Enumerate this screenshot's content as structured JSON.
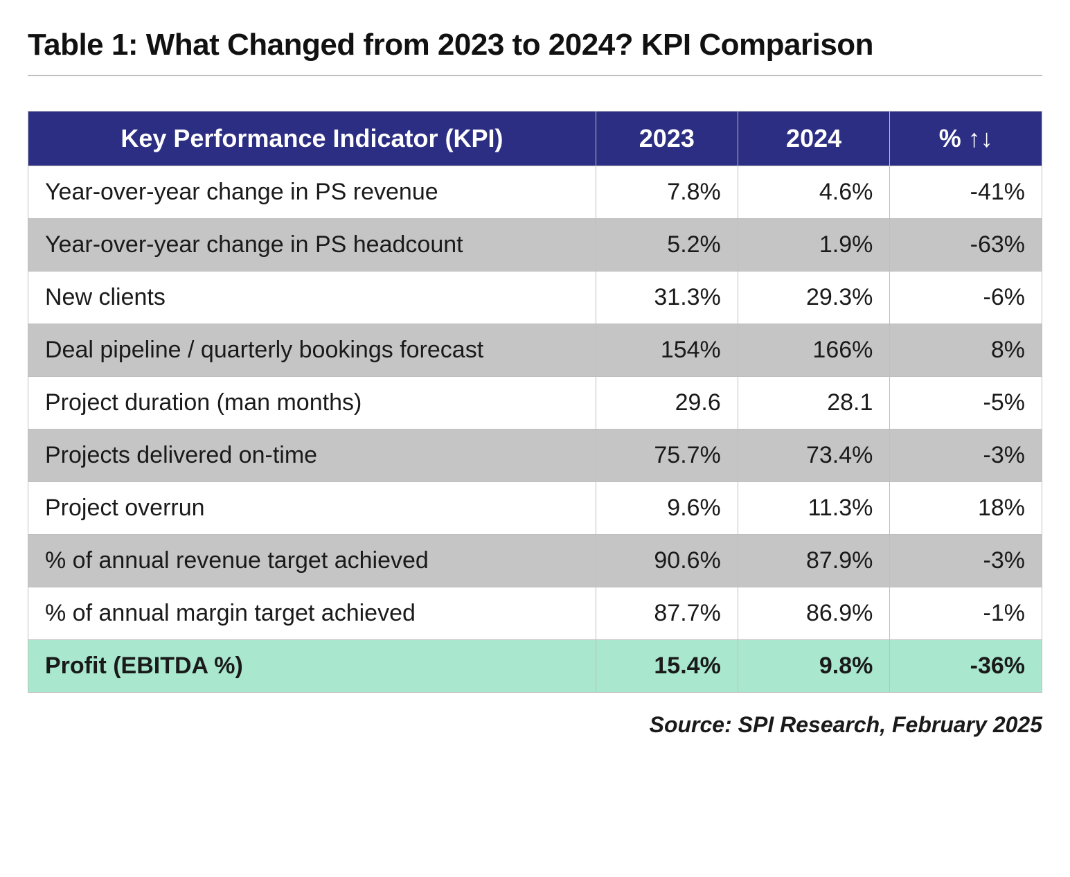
{
  "title": "Table 1:  What Changed from 2023 to 2024? KPI Comparison",
  "source_line": "Source: SPI Research, February 2025",
  "table": {
    "type": "table",
    "header_bg": "#2c2e83",
    "header_text_color": "#ffffff",
    "row_even_bg": "#ffffff",
    "row_odd_bg": "#c5c5c5",
    "highlight_bg": "#a9e8cf",
    "border_color": "#bfbfbf",
    "title_fontsize_pt": 33,
    "header_fontsize_pt": 27,
    "body_fontsize_pt": 26,
    "columns": [
      {
        "key": "kpi",
        "label": "Key Performance Indicator (KPI)",
        "align": "left",
        "width_pct": 56
      },
      {
        "key": "y2023",
        "label": "2023",
        "align": "right",
        "width_pct": 14
      },
      {
        "key": "y2024",
        "label": "2024",
        "align": "right",
        "width_pct": 15
      },
      {
        "key": "change",
        "label": "% ↑↓",
        "align": "right",
        "width_pct": 15
      }
    ],
    "rows": [
      {
        "kpi": "Year-over-year change in PS revenue",
        "y2023": "7.8%",
        "y2024": "4.6%",
        "change": "-41%",
        "highlight": false
      },
      {
        "kpi": "Year-over-year change in PS headcount",
        "y2023": "5.2%",
        "y2024": "1.9%",
        "change": "-63%",
        "highlight": false
      },
      {
        "kpi": "New clients",
        "y2023": "31.3%",
        "y2024": "29.3%",
        "change": "-6%",
        "highlight": false
      },
      {
        "kpi": "Deal pipeline / quarterly bookings forecast",
        "y2023": "154%",
        "y2024": "166%",
        "change": "8%",
        "highlight": false
      },
      {
        "kpi": "Project duration (man months)",
        "y2023": "29.6",
        "y2024": "28.1",
        "change": "-5%",
        "highlight": false
      },
      {
        "kpi": "Projects delivered on-time",
        "y2023": "75.7%",
        "y2024": "73.4%",
        "change": "-3%",
        "highlight": false
      },
      {
        "kpi": "Project overrun",
        "y2023": "9.6%",
        "y2024": "11.3%",
        "change": "18%",
        "highlight": false
      },
      {
        "kpi": "% of annual revenue target achieved",
        "y2023": "90.6%",
        "y2024": "87.9%",
        "change": "-3%",
        "highlight": false
      },
      {
        "kpi": "% of annual margin target achieved",
        "y2023": "87.7%",
        "y2024": "86.9%",
        "change": "-1%",
        "highlight": false
      },
      {
        "kpi": "Profit (EBITDA %)",
        "y2023": "15.4%",
        "y2024": "9.8%",
        "change": "-36%",
        "highlight": true
      }
    ]
  }
}
